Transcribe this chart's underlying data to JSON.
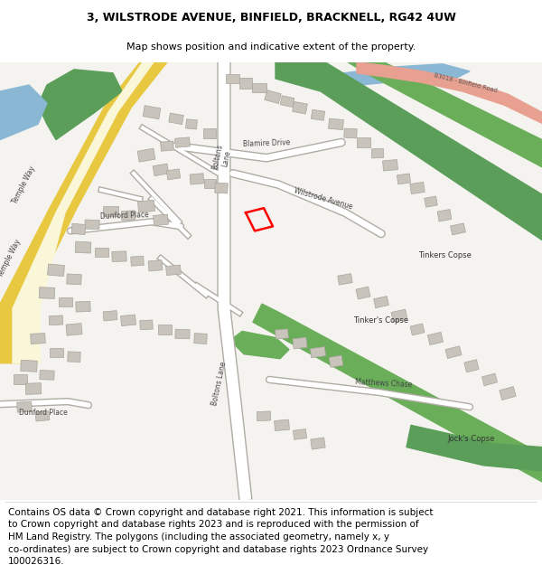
{
  "title_line1": "3, WILSTRODE AVENUE, BINFIELD, BRACKNELL, RG42 4UW",
  "title_line2": "Map shows position and indicative extent of the property.",
  "title_fontsize": 9,
  "subtitle_fontsize": 8,
  "footer_lines": [
    "Contains OS data © Crown copyright and database right 2021. This information is subject",
    "to Crown copyright and database rights 2023 and is reproduced with the permission of",
    "HM Land Registry. The polygons (including the associated geometry, namely x, y",
    "co-ordinates) are subject to Crown copyright and database rights 2023 Ordnance Survey",
    "100026316."
  ],
  "footer_fontsize": 7.5,
  "bg_color": "#ffffff",
  "map_bg": "#f5f3ef"
}
